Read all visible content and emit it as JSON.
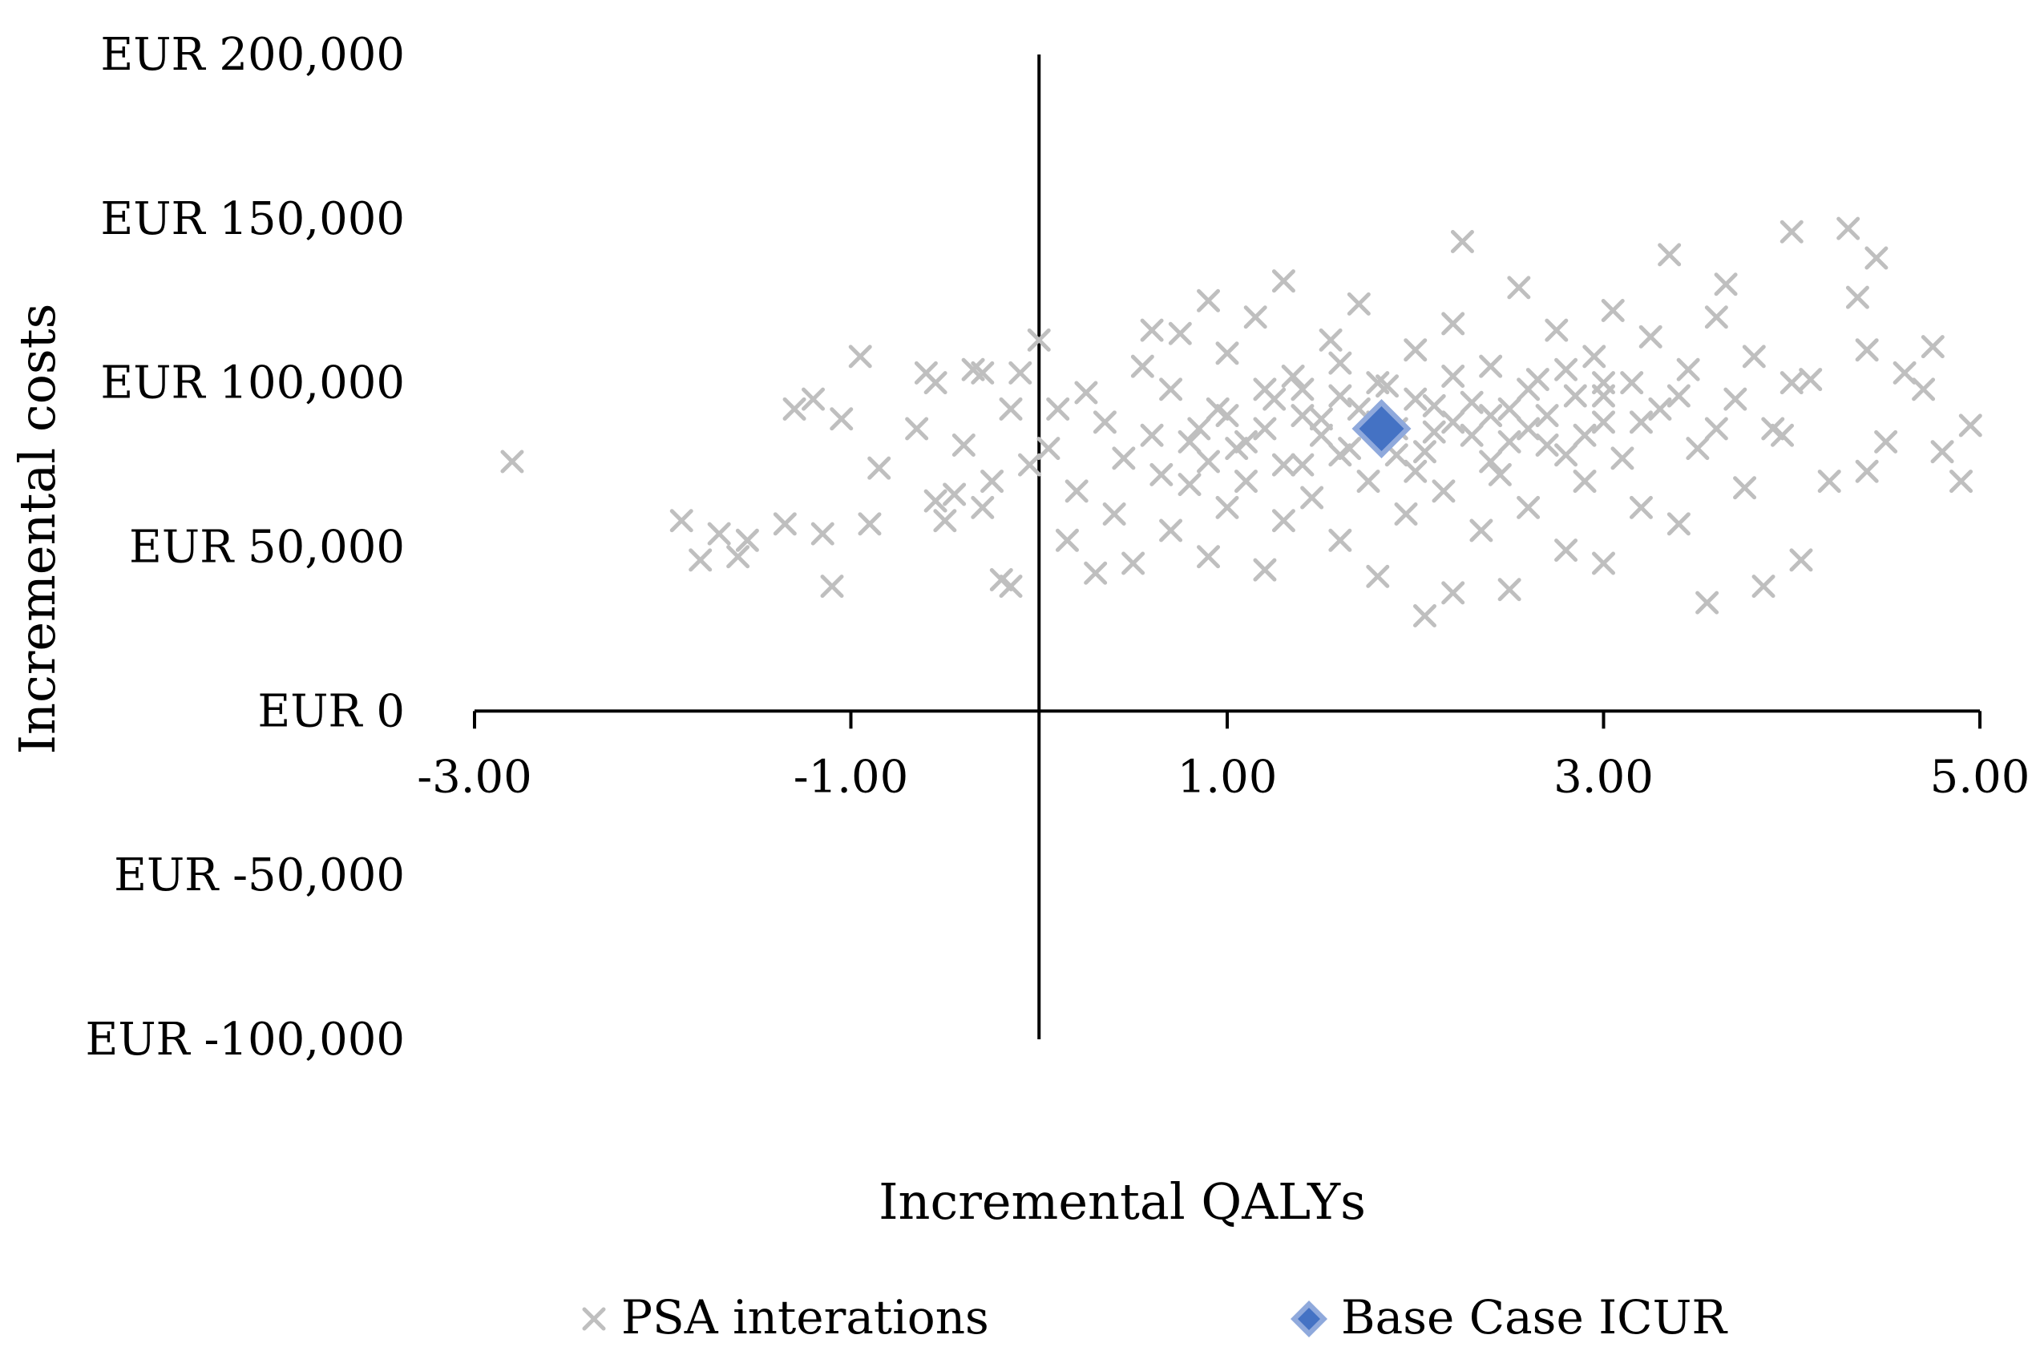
{
  "chart_data": {
    "type": "scatter",
    "title": "",
    "xlabel": "Incremental QALYs",
    "ylabel": "Incremental costs",
    "xlim": [
      -3,
      5
    ],
    "ylim": [
      -100000,
      200000
    ],
    "x_ticks": [
      -3,
      -1,
      1,
      3,
      5
    ],
    "x_tick_labels": [
      "-3.00",
      "-1.00",
      "1.00",
      "3.00",
      "5.00"
    ],
    "y_ticks": [
      200000,
      150000,
      100000,
      50000,
      0,
      -50000,
      -100000
    ],
    "y_tick_labels": [
      "EUR 200,000",
      "EUR 150,000",
      "EUR 100,000",
      "EUR 50,000",
      "EUR 0",
      "EUR -50,000",
      "EUR -100,000"
    ],
    "grid": false,
    "legend_position": "bottom",
    "series": [
      {
        "name": "PSA interations",
        "marker": "x",
        "color": "#bfbfbf",
        "points": [
          [
            -2.8,
            76000
          ],
          [
            -1.9,
            58000
          ],
          [
            -1.8,
            46000
          ],
          [
            -1.7,
            54000
          ],
          [
            -1.6,
            47000
          ],
          [
            -1.55,
            52000
          ],
          [
            -1.35,
            57000
          ],
          [
            -1.3,
            92000
          ],
          [
            -1.2,
            95000
          ],
          [
            -1.15,
            54000
          ],
          [
            -1.1,
            38000
          ],
          [
            -1.05,
            89000
          ],
          [
            -0.95,
            108000
          ],
          [
            -0.9,
            57000
          ],
          [
            -0.85,
            74000
          ],
          [
            -0.65,
            86000
          ],
          [
            -0.6,
            103000
          ],
          [
            -0.55,
            100000
          ],
          [
            -0.55,
            64000
          ],
          [
            -0.5,
            58000
          ],
          [
            -0.45,
            66000
          ],
          [
            -0.4,
            81000
          ],
          [
            -0.35,
            104000
          ],
          [
            -0.3,
            103000
          ],
          [
            -0.3,
            62000
          ],
          [
            -0.25,
            70000
          ],
          [
            -0.2,
            40000
          ],
          [
            -0.15,
            38000
          ],
          [
            -0.15,
            92000
          ],
          [
            -0.1,
            103000
          ],
          [
            -0.05,
            75000
          ],
          [
            0.0,
            113000
          ],
          [
            0.05,
            80000
          ],
          [
            0.1,
            92000
          ],
          [
            0.15,
            52000
          ],
          [
            0.2,
            67000
          ],
          [
            0.25,
            97000
          ],
          [
            0.3,
            42000
          ],
          [
            0.35,
            88000
          ],
          [
            0.4,
            60000
          ],
          [
            0.45,
            77000
          ],
          [
            0.5,
            45000
          ],
          [
            0.55,
            105000
          ],
          [
            0.6,
            116000
          ],
          [
            0.6,
            84000
          ],
          [
            0.65,
            72000
          ],
          [
            0.7,
            55000
          ],
          [
            0.7,
            98000
          ],
          [
            0.75,
            115000
          ],
          [
            0.8,
            69000
          ],
          [
            0.85,
            86000
          ],
          [
            0.9,
            125000
          ],
          [
            0.9,
            47000
          ],
          [
            0.95,
            92000
          ],
          [
            1.0,
            62000
          ],
          [
            1.0,
            109000
          ],
          [
            1.05,
            80000
          ],
          [
            1.1,
            70000
          ],
          [
            1.15,
            120000
          ],
          [
            1.2,
            43000
          ],
          [
            1.25,
            95000
          ],
          [
            1.3,
            58000
          ],
          [
            1.3,
            131000
          ],
          [
            1.35,
            102000
          ],
          [
            1.4,
            75000
          ],
          [
            1.45,
            65000
          ],
          [
            1.5,
            89000
          ],
          [
            1.55,
            113000
          ],
          [
            1.6,
            52000
          ],
          [
            1.6,
            96000
          ],
          [
            1.65,
            80000
          ],
          [
            1.7,
            124000
          ],
          [
            1.75,
            70000
          ],
          [
            1.8,
            41000
          ],
          [
            1.85,
            99000
          ],
          [
            1.9,
            86000
          ],
          [
            1.95,
            60000
          ],
          [
            2.0,
            110000
          ],
          [
            2.05,
            79000
          ],
          [
            2.05,
            29000
          ],
          [
            2.1,
            93000
          ],
          [
            2.15,
            67000
          ],
          [
            2.2,
            118000
          ],
          [
            2.2,
            36000
          ],
          [
            2.25,
            143000
          ],
          [
            2.3,
            84000
          ],
          [
            2.35,
            55000
          ],
          [
            2.4,
            105000
          ],
          [
            2.45,
            72000
          ],
          [
            2.5,
            92000
          ],
          [
            2.5,
            37000
          ],
          [
            2.55,
            129000
          ],
          [
            2.6,
            62000
          ],
          [
            2.65,
            101000
          ],
          [
            2.7,
            81000
          ],
          [
            2.75,
            116000
          ],
          [
            2.8,
            49000
          ],
          [
            2.85,
            96000
          ],
          [
            2.9,
            70000
          ],
          [
            2.95,
            108000
          ],
          [
            3.0,
            88000
          ],
          [
            3.0,
            45000
          ],
          [
            3.05,
            122000
          ],
          [
            3.1,
            77000
          ],
          [
            3.15,
            100000
          ],
          [
            3.2,
            62000
          ],
          [
            3.25,
            114000
          ],
          [
            3.3,
            92000
          ],
          [
            3.35,
            139000
          ],
          [
            3.4,
            57000
          ],
          [
            3.45,
            104000
          ],
          [
            3.5,
            80000
          ],
          [
            3.55,
            33000
          ],
          [
            3.6,
            120000
          ],
          [
            3.65,
            130000
          ],
          [
            3.7,
            95000
          ],
          [
            3.75,
            68000
          ],
          [
            3.8,
            108000
          ],
          [
            3.85,
            38000
          ],
          [
            3.9,
            86000
          ],
          [
            4.0,
            146000
          ],
          [
            4.0,
            100000
          ],
          [
            4.05,
            46000
          ],
          [
            4.1,
            101000
          ],
          [
            4.2,
            70000
          ],
          [
            4.3,
            147000
          ],
          [
            4.35,
            126000
          ],
          [
            4.4,
            110000
          ],
          [
            4.45,
            138000
          ],
          [
            4.5,
            82000
          ],
          [
            4.7,
            98000
          ],
          [
            4.75,
            111000
          ],
          [
            4.8,
            79000
          ],
          [
            4.9,
            70000
          ],
          [
            4.95,
            87000
          ],
          [
            4.4,
            73000
          ],
          [
            4.6,
            103000
          ],
          [
            3.95,
            84000
          ],
          [
            1.2,
            98000
          ],
          [
            1.4,
            90000
          ],
          [
            1.6,
            106000
          ],
          [
            1.8,
            88000
          ],
          [
            2.0,
            95000
          ],
          [
            2.2,
            102000
          ],
          [
            2.4,
            90000
          ],
          [
            2.6,
            98000
          ],
          [
            2.8,
            104000
          ],
          [
            3.0,
            96000
          ],
          [
            1.1,
            82000
          ],
          [
            1.3,
            75000
          ],
          [
            1.5,
            84000
          ],
          [
            1.7,
            92000
          ],
          [
            1.9,
            78000
          ],
          [
            2.1,
            85000
          ],
          [
            2.3,
            94000
          ],
          [
            2.5,
            82000
          ],
          [
            2.7,
            90000
          ],
          [
            2.9,
            84000
          ],
          [
            0.9,
            76000
          ],
          [
            0.8,
            82000
          ],
          [
            1.0,
            90000
          ],
          [
            1.2,
            86000
          ],
          [
            1.4,
            98000
          ],
          [
            1.6,
            78000
          ],
          [
            1.8,
            100000
          ],
          [
            2.0,
            73000
          ],
          [
            2.2,
            88000
          ],
          [
            2.4,
            76000
          ],
          [
            2.6,
            86000
          ],
          [
            2.8,
            78000
          ],
          [
            3.0,
            100000
          ],
          [
            3.2,
            88000
          ],
          [
            3.4,
            96000
          ],
          [
            3.6,
            86000
          ]
        ]
      },
      {
        "name": "Base Case ICUR",
        "marker": "diamond",
        "color": "#4472c4",
        "points": [
          [
            1.82,
            86000
          ]
        ]
      }
    ]
  }
}
